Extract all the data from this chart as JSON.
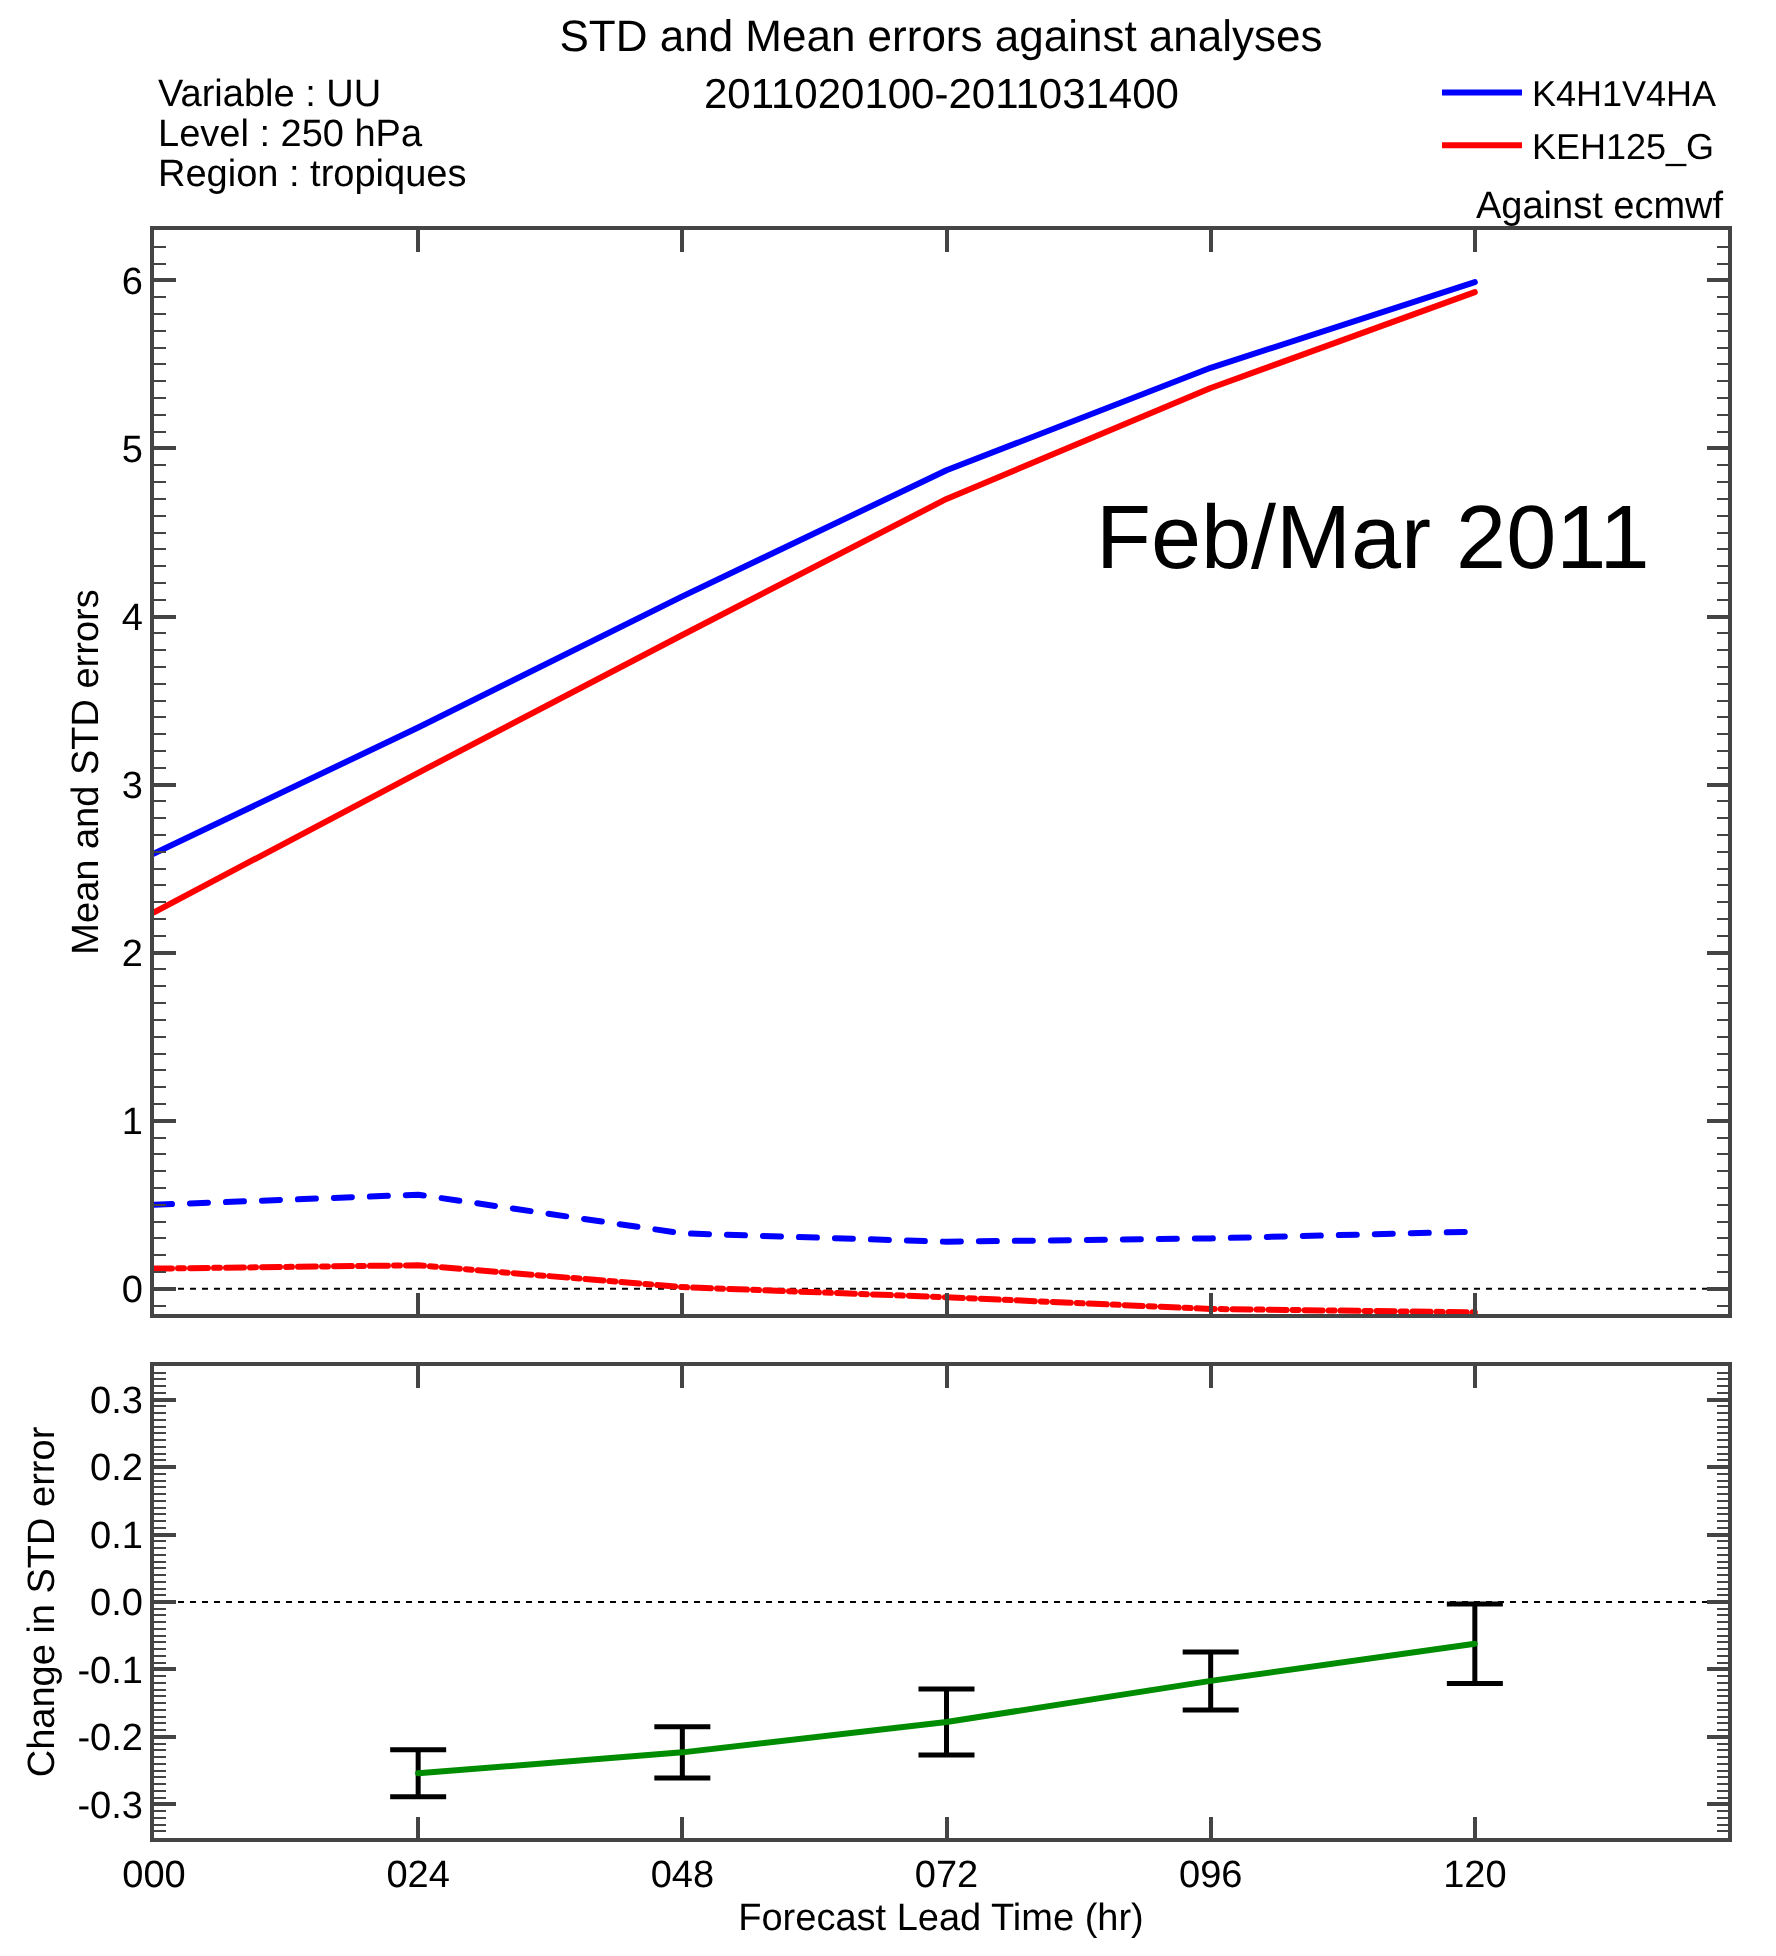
{
  "chart_data": [
    {
      "type": "line",
      "title": "STD and Mean errors against analyses",
      "subtitle": "2011020100-2011031400",
      "ylabel": "Mean and STD errors",
      "annotations": [
        "Variable : UU",
        "Level : 250 hPa",
        "Region : tropiques",
        "Against ecmwf",
        "Feb/Mar 2011"
      ],
      "x": [
        0,
        24,
        48,
        72,
        96,
        120
      ],
      "series": [
        {
          "name": "K4H1V4HA",
          "color": "#0000ff",
          "values": [
            2.59,
            3.34,
            4.12,
            4.87,
            5.48,
            5.99
          ]
        },
        {
          "name": "KEH125_G",
          "color": "#ff0000",
          "values": [
            2.24,
            3.07,
            3.89,
            4.7,
            5.36,
            5.93
          ]
        },
        {
          "color": "#0000ff",
          "line_style": "dashed",
          "values": [
            0.5,
            0.56,
            0.33,
            0.28,
            0.3,
            0.34
          ]
        },
        {
          "color": "#ff0000",
          "line_style": "dashdot",
          "values": [
            0.12,
            0.14,
            0.01,
            -0.05,
            -0.12,
            -0.14
          ]
        }
      ],
      "xlim": [
        0,
        143
      ],
      "xticks": [
        0,
        24,
        48,
        72,
        96,
        120
      ],
      "ylim": [
        -0.15,
        6.3
      ],
      "yticks": [
        {
          "value": -0.1,
          "label": null
        },
        0,
        {
          "value": 0.1,
          "label": null
        },
        {
          "value": 0.2,
          "label": null
        },
        {
          "value": 0.3,
          "label": null
        },
        {
          "value": 0.4,
          "label": null
        },
        {
          "value": 0.5,
          "label": null
        },
        {
          "value": 0.6,
          "label": null
        },
        {
          "value": 0.7,
          "label": null
        },
        {
          "value": 0.8,
          "label": null
        },
        {
          "value": 0.9,
          "label": null
        },
        1,
        {
          "value": 1.1,
          "label": null
        },
        {
          "value": 1.2,
          "label": null
        },
        {
          "value": 1.3,
          "label": null
        },
        {
          "value": 1.4,
          "label": null
        },
        {
          "value": 1.5,
          "label": null
        },
        {
          "value": 1.6,
          "label": null
        },
        {
          "value": 1.7,
          "label": null
        },
        {
          "value": 1.8,
          "label": null
        },
        {
          "value": 1.9,
          "label": null
        },
        2,
        {
          "value": 2.1,
          "label": null
        },
        {
          "value": 2.2,
          "label": null
        },
        {
          "value": 2.3,
          "label": null
        },
        {
          "value": 2.4,
          "label": null
        },
        {
          "value": 2.5,
          "label": null
        },
        {
          "value": 2.6,
          "label": null
        },
        {
          "value": 2.7,
          "label": null
        },
        {
          "value": 2.8,
          "label": null
        },
        {
          "value": 2.9,
          "label": null
        },
        3,
        {
          "value": 3.1,
          "label": null
        },
        {
          "value": 3.2,
          "label": null
        },
        {
          "value": 3.3,
          "label": null
        },
        {
          "value": 3.4,
          "label": null
        },
        {
          "value": 3.5,
          "label": null
        },
        {
          "value": 3.6,
          "label": null
        },
        {
          "value": 3.7,
          "label": null
        },
        {
          "value": 3.8,
          "label": null
        },
        {
          "value": 3.9,
          "label": null
        },
        4,
        {
          "value": 4.1,
          "label": null
        },
        {
          "value": 4.2,
          "label": null
        },
        {
          "value": 4.3,
          "label": null
        },
        {
          "value": 4.4,
          "label": null
        },
        {
          "value": 4.5,
          "label": null
        },
        {
          "value": 4.6,
          "label": null
        },
        {
          "value": 4.7,
          "label": null
        },
        {
          "value": 4.8,
          "label": null
        },
        {
          "value": 4.9,
          "label": null
        },
        5,
        {
          "value": 5.1,
          "label": null
        },
        {
          "value": 5.2,
          "label": null
        },
        {
          "value": 5.3,
          "label": null
        },
        {
          "value": 5.4,
          "label": null
        },
        {
          "value": 5.5,
          "label": null
        },
        {
          "value": 5.6,
          "label": null
        },
        {
          "value": 5.7,
          "label": null
        },
        {
          "value": 5.8,
          "label": null
        },
        {
          "value": 5.9,
          "label": null
        },
        6,
        {
          "value": 6.1,
          "label": null
        },
        {
          "value": 6.2,
          "label": null
        }
      ],
      "tick_labels": "y",
      "ref_lines": [
        {
          "axis": "y",
          "value": 0,
          "color": "#000000",
          "line_style": "dotted"
        }
      ],
      "legend": "top right",
      "grid": false,
      "marker": "none",
      "line_style": "solid"
    },
    {
      "type": "line",
      "xlabel": "Forecast Lead Time (hr)",
      "ylabel": "Change in STD error",
      "x": [
        24,
        48,
        72,
        96,
        120
      ],
      "series": [
        {
          "color": "#008c00",
          "values": [
            -0.254,
            -0.223,
            -0.178,
            -0.117,
            -0.062
          ],
          "errors": [
            0.035,
            0.038,
            0.049,
            0.043,
            0.059
          ]
        }
      ],
      "xlim": [
        0,
        143
      ],
      "xticks": [
        {
          "value": 0,
          "label": "000"
        },
        {
          "value": 24,
          "label": "024"
        },
        {
          "value": 48,
          "label": "048"
        },
        {
          "value": 72,
          "label": "072"
        },
        {
          "value": 96,
          "label": "096"
        },
        120
      ],
      "ylim": [
        -0.35,
        0.35
      ],
      "yticks": [
        {
          "value": -0.34,
          "label": null
        },
        {
          "value": -0.33,
          "label": null
        },
        {
          "value": -0.32,
          "label": null
        },
        {
          "value": -0.31,
          "label": null
        },
        -0.3,
        {
          "value": -0.29,
          "label": null
        },
        {
          "value": -0.28,
          "label": null
        },
        {
          "value": -0.27,
          "label": null
        },
        {
          "value": -0.26,
          "label": null
        },
        {
          "value": -0.25,
          "label": null
        },
        {
          "value": -0.24,
          "label": null
        },
        {
          "value": -0.23,
          "label": null
        },
        {
          "value": -0.22,
          "label": null
        },
        {
          "value": -0.21,
          "label": null
        },
        -0.2,
        {
          "value": -0.19,
          "label": null
        },
        {
          "value": -0.18,
          "label": null
        },
        {
          "value": -0.17,
          "label": null
        },
        {
          "value": -0.16,
          "label": null
        },
        {
          "value": -0.15,
          "label": null
        },
        {
          "value": -0.14,
          "label": null
        },
        {
          "value": -0.13,
          "label": null
        },
        {
          "value": -0.12,
          "label": null
        },
        {
          "value": -0.11,
          "label": null
        },
        -0.1,
        {
          "value": -0.09,
          "label": null
        },
        {
          "value": -0.08,
          "label": null
        },
        {
          "value": -0.07,
          "label": null
        },
        {
          "value": -0.06,
          "label": null
        },
        {
          "value": -0.05,
          "label": null
        },
        {
          "value": -0.04,
          "label": null
        },
        {
          "value": -0.03,
          "label": null
        },
        {
          "value": -0.02,
          "label": null
        },
        {
          "value": -0.01,
          "label": null
        },
        {
          "value": 0,
          "label": "0.0"
        },
        {
          "value": 0.01,
          "label": null
        },
        {
          "value": 0.02,
          "label": null
        },
        {
          "value": 0.03,
          "label": null
        },
        {
          "value": 0.04,
          "label": null
        },
        {
          "value": 0.05,
          "label": null
        },
        {
          "value": 0.06,
          "label": null
        },
        {
          "value": 0.07,
          "label": null
        },
        {
          "value": 0.08,
          "label": null
        },
        {
          "value": 0.09,
          "label": null
        },
        0.1,
        {
          "value": 0.11,
          "label": null
        },
        {
          "value": 0.12,
          "label": null
        },
        {
          "value": 0.13,
          "label": null
        },
        {
          "value": 0.14,
          "label": null
        },
        {
          "value": 0.15,
          "label": null
        },
        {
          "value": 0.16,
          "label": null
        },
        {
          "value": 0.17,
          "label": null
        },
        {
          "value": 0.18,
          "label": null
        },
        {
          "value": 0.19,
          "label": null
        },
        0.2,
        {
          "value": 0.21,
          "label": null
        },
        {
          "value": 0.22,
          "label": null
        },
        {
          "value": 0.23,
          "label": null
        },
        {
          "value": 0.24,
          "label": null
        },
        {
          "value": 0.25,
          "label": null
        },
        {
          "value": 0.26,
          "label": null
        },
        {
          "value": 0.27,
          "label": null
        },
        {
          "value": 0.28,
          "label": null
        },
        {
          "value": 0.29,
          "label": null
        },
        0.3,
        {
          "value": 0.31,
          "label": null
        },
        {
          "value": 0.32,
          "label": null
        },
        {
          "value": 0.33,
          "label": null
        },
        {
          "value": 0.34,
          "label": null
        }
      ],
      "ref_lines": [
        {
          "axis": "y",
          "value": 0,
          "color": "#000000",
          "line_style": "dotted"
        }
      ],
      "legend": false,
      "grid": false,
      "marker": "none",
      "line_style": "solid"
    }
  ]
}
